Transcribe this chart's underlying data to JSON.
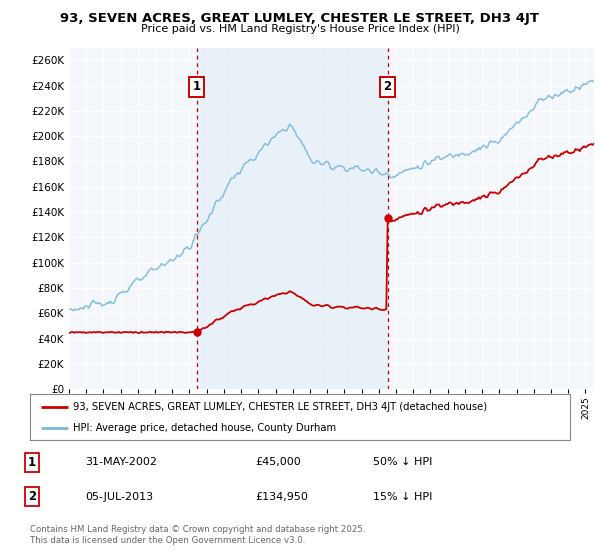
{
  "title": "93, SEVEN ACRES, GREAT LUMLEY, CHESTER LE STREET, DH3 4JT",
  "subtitle": "Price paid vs. HM Land Registry's House Price Index (HPI)",
  "legend_label_red": "93, SEVEN ACRES, GREAT LUMLEY, CHESTER LE STREET, DH3 4JT (detached house)",
  "legend_label_blue": "HPI: Average price, detached house, County Durham",
  "sale1_date": "31-MAY-2002",
  "sale1_price": "£45,000",
  "sale1_note": "50% ↓ HPI",
  "sale2_date": "05-JUL-2013",
  "sale2_price": "£134,950",
  "sale2_note": "15% ↓ HPI",
  "footer": "Contains HM Land Registry data © Crown copyright and database right 2025.\nThis data is licensed under the Open Government Licence v3.0.",
  "ylim": [
    0,
    270000
  ],
  "ytick_step": 20000,
  "hpi_color": "#7ab8d9",
  "price_color": "#cc0000",
  "vline_color": "#cc0000",
  "bg_color": "#e8f0f8",
  "plot_bg": "#f4f8fc",
  "grid_color": "#d8d8d8",
  "sale1_year": 2002.42,
  "sale2_year": 2013.51,
  "price_sale1": 45000,
  "price_sale2": 134950,
  "xmin": 1995.0,
  "xmax": 2025.5
}
